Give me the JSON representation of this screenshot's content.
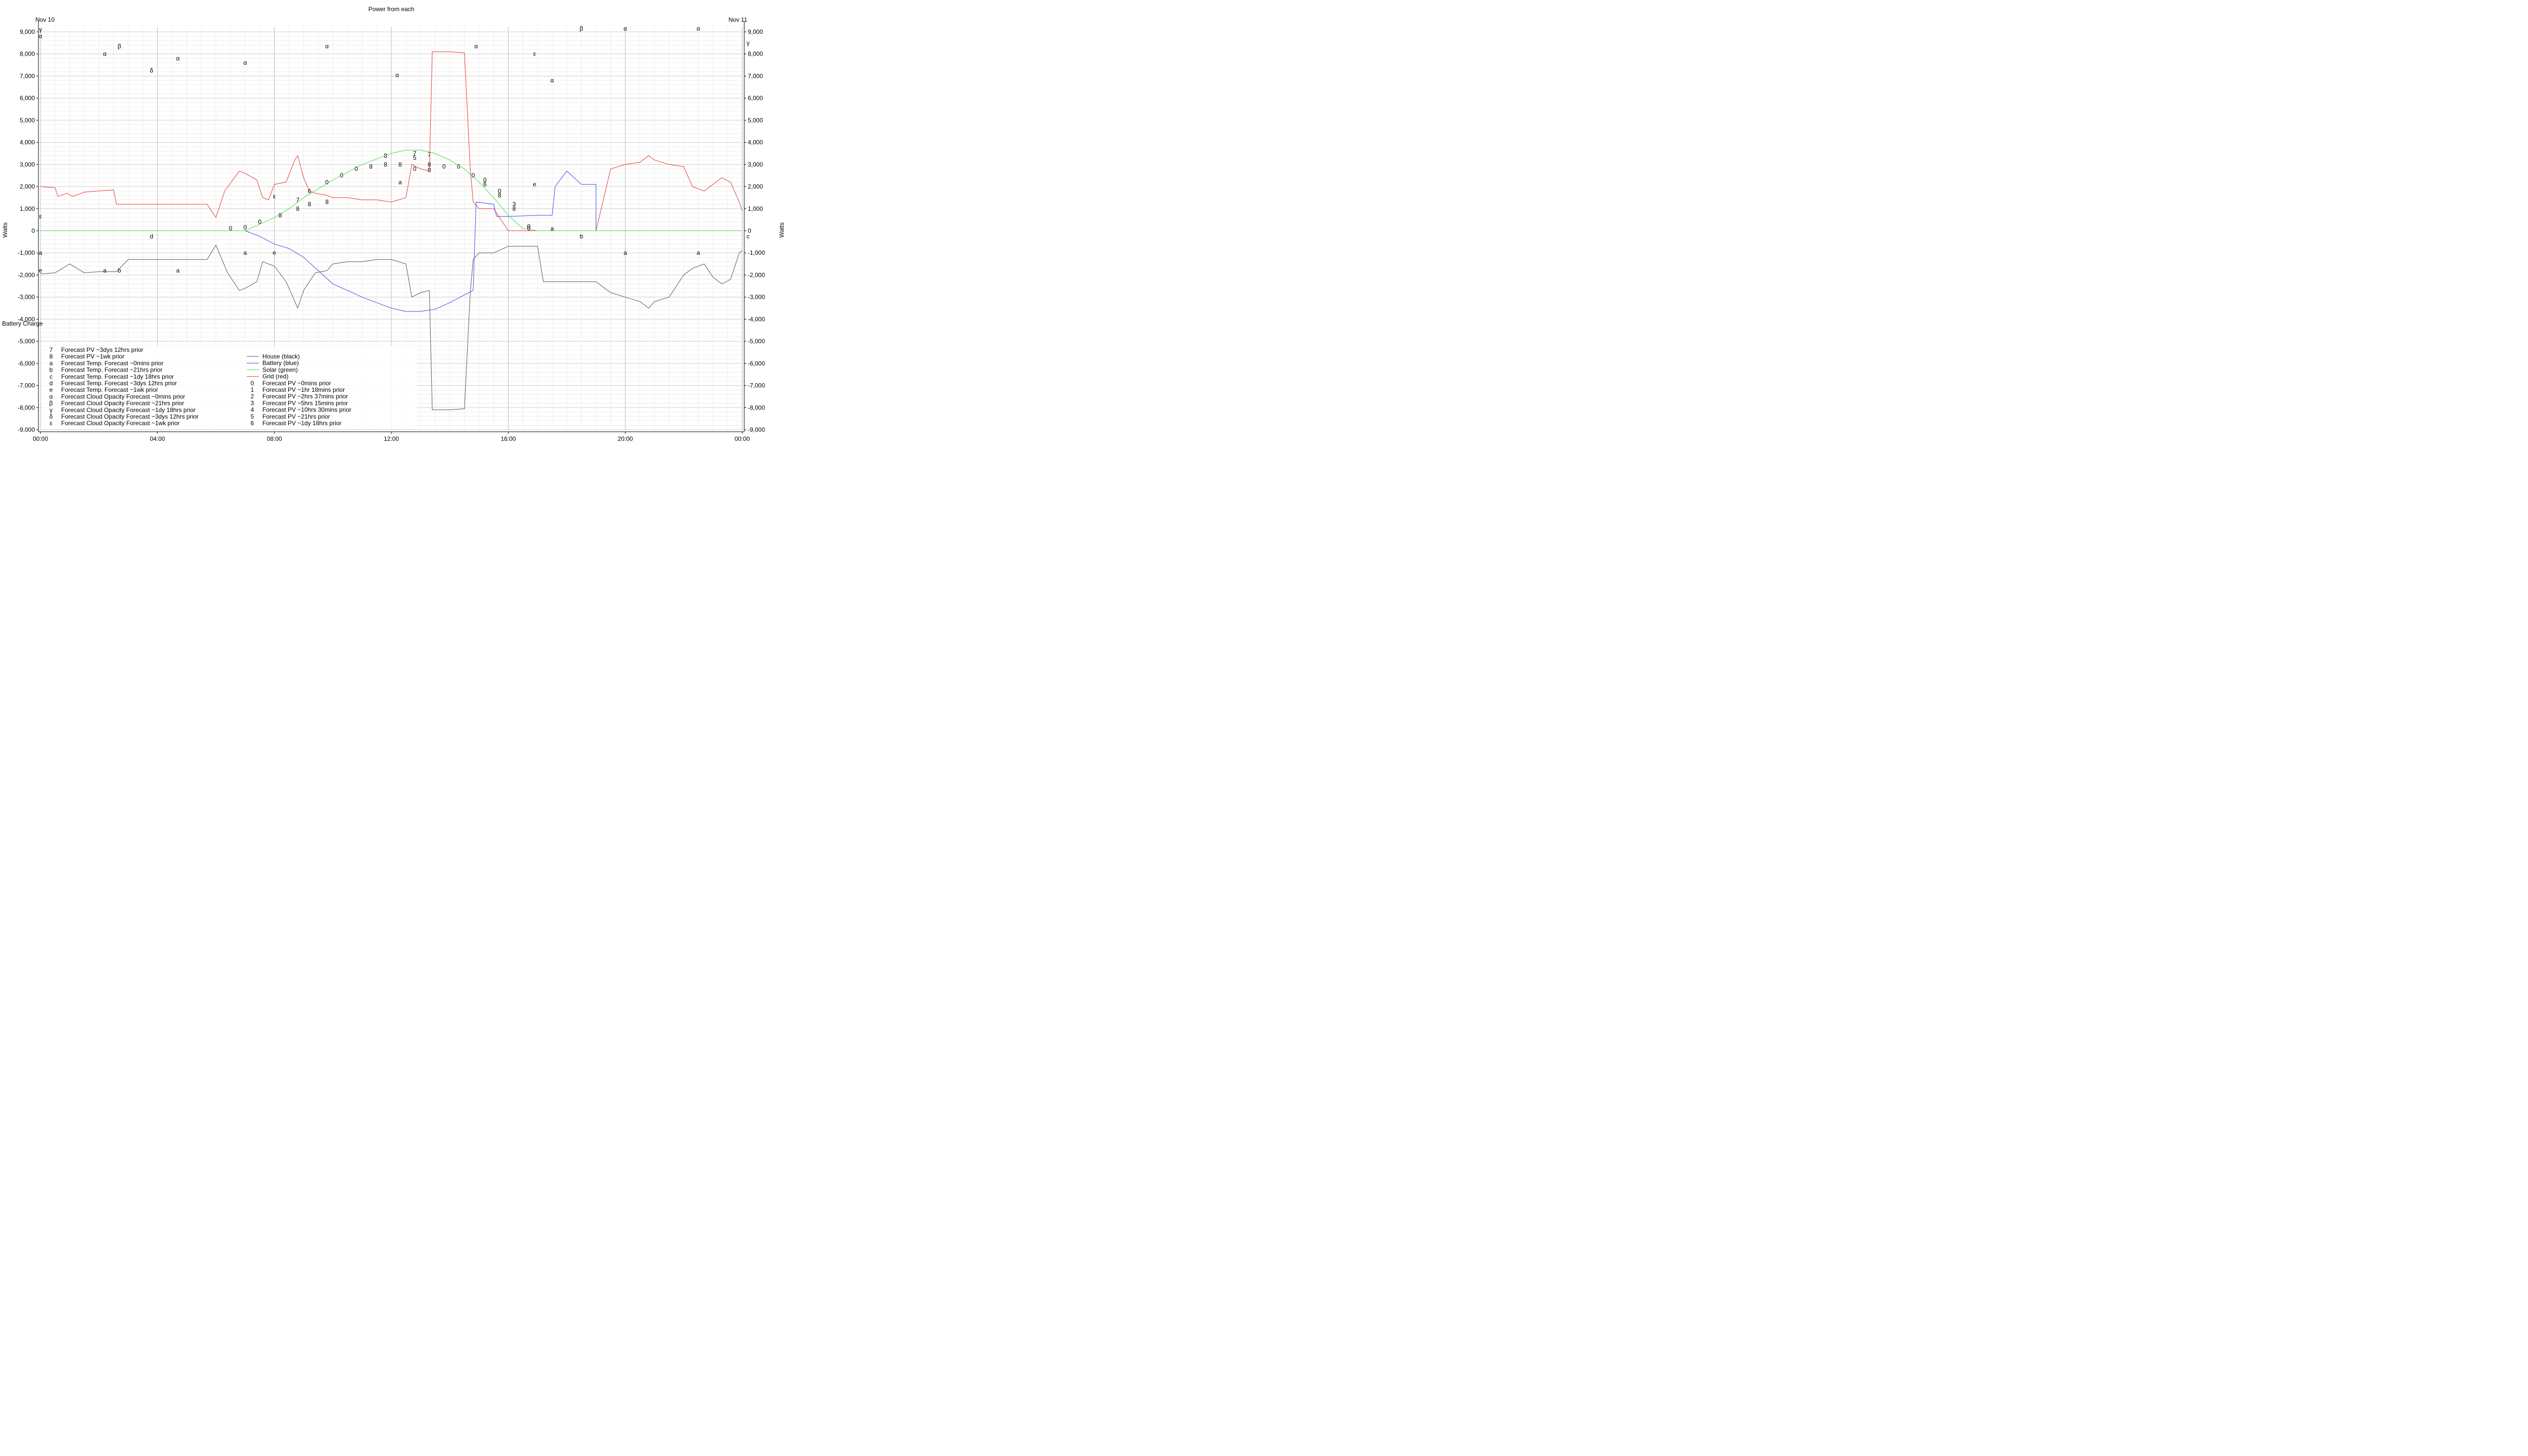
{
  "chart_data": {
    "type": "line",
    "title": "Power from each",
    "date_left": "Nov 10",
    "date_right": "Nov 11",
    "ylabel": "Watts",
    "ylabel_right": "Watts",
    "battery_label": "Battery Charge",
    "ylim": [
      -9000,
      9000
    ],
    "xlim_hours": [
      0,
      24
    ],
    "grid": true,
    "y_ticks": [
      "9,000",
      "8,000",
      "7,000",
      "6,000",
      "5,000",
      "4,000",
      "3,000",
      "2,000",
      "1,000",
      "0",
      "-1,000",
      "-2,000",
      "-3,000",
      "-4,000",
      "-5,000",
      "-6,000",
      "-7,000",
      "-8,000",
      "-9,000"
    ],
    "x_ticks": [
      "00:00",
      "04:00",
      "08:00",
      "12:00",
      "16:00",
      "20:00",
      "00:00"
    ],
    "legend_left": [
      {
        "sym": "7",
        "label": "Forecast PV ~3dys 12hrs prior"
      },
      {
        "sym": "8",
        "label": "Forecast PV ~1wk prior"
      },
      {
        "sym": "a",
        "label": "Forecast Temp. Forecast ~0mins prior"
      },
      {
        "sym": "b",
        "label": "Forecast Temp. Forecast ~21hrs prior"
      },
      {
        "sym": "c",
        "label": "Forecast Temp. Forecast ~1dy 18hrs prior"
      },
      {
        "sym": "d",
        "label": "Forecast Temp. Forecast ~3dys 12hrs prior"
      },
      {
        "sym": "e",
        "label": "Forecast Temp. Forecast ~1wk prior"
      },
      {
        "sym": "α",
        "label": "Forecast Cloud Opacity Forecast ~0mins prior"
      },
      {
        "sym": "β",
        "label": "Forecast Cloud Opacity Forecast ~21hrs prior"
      },
      {
        "sym": "γ",
        "label": "Forecast Cloud Opacity Forecast ~1dy 18hrs prior"
      },
      {
        "sym": "δ",
        "label": "Forecast Cloud Opacity Forecast ~3dys 12hrs prior"
      },
      {
        "sym": "ε",
        "label": "Forecast Cloud Opacity Forecast ~1wk prior"
      }
    ],
    "legend_right": [
      {
        "sym": "",
        "label": "House (black)",
        "color": "#555555"
      },
      {
        "sym": "",
        "label": "Battery (blue)",
        "color": "#4444ee"
      },
      {
        "sym": "",
        "label": "Solar (green)",
        "color": "#44dd44"
      },
      {
        "sym": "",
        "label": "Grid (red)",
        "color": "#ee3333"
      },
      {
        "sym": "0",
        "label": "Forecast PV ~0mins prior"
      },
      {
        "sym": "1",
        "label": "Forecast PV ~1hr 18mins prior"
      },
      {
        "sym": "2",
        "label": "Forecast PV ~2hrs 37mins prior"
      },
      {
        "sym": "3",
        "label": "Forecast PV ~5hrs 15mins prior"
      },
      {
        "sym": "4",
        "label": "Forecast PV ~10hrs 30mins prior"
      },
      {
        "sym": "5",
        "label": "Forecast PV ~21hrs prior"
      },
      {
        "sym": "6",
        "label": "Forecast PV ~1dy 18hrs prior"
      }
    ],
    "series": [
      {
        "name": "Grid (red)",
        "color": "#ee3333",
        "x": [
          0,
          0.5,
          0.6,
          0.9,
          1.1,
          1.5,
          2.0,
          2.5,
          2.6,
          3.0,
          4.0,
          5.0,
          5.7,
          6.0,
          6.3,
          6.8,
          7.0,
          7.4,
          7.6,
          7.8,
          8.0,
          8.4,
          8.7,
          8.8,
          9.0,
          9.2,
          9.4,
          9.8,
          10.0,
          10.5,
          11.0,
          11.5,
          12.0,
          12.5,
          12.7,
          13.0,
          13.3,
          13.4,
          14.0,
          14.5,
          14.7,
          14.8,
          15.0,
          15.5,
          16.0,
          16.5,
          16.9,
          17.0,
          19.0,
          19.5,
          20.0,
          20.5,
          20.8,
          21.0,
          21.5,
          22.0,
          22.3,
          22.7,
          23.0,
          23.3,
          23.6,
          23.9,
          24.0
        ],
        "y": [
          2000,
          1950,
          1550,
          1700,
          1550,
          1750,
          1800,
          1850,
          1200,
          1200,
          1200,
          1200,
          1200,
          600,
          1800,
          2700,
          2600,
          2300,
          1500,
          1400,
          2100,
          2200,
          3200,
          3400,
          2400,
          1800,
          1700,
          1600,
          1500,
          1500,
          1400,
          1400,
          1300,
          1500,
          3000,
          2800,
          2700,
          8100,
          8100,
          8050,
          2800,
          1300,
          1000,
          1000,
          0,
          0,
          0,
          0,
          0,
          2800,
          3000,
          3100,
          3400,
          3200,
          3000,
          2900,
          2000,
          1800,
          2100,
          2400,
          2200,
          1300,
          900
        ]
      },
      {
        "name": "House (black)",
        "color": "#555555",
        "x": [
          0,
          0.5,
          1.0,
          1.5,
          2.0,
          2.6,
          3.0,
          4.0,
          5.0,
          5.7,
          6.0,
          6.4,
          6.8,
          7.0,
          7.4,
          7.6,
          8.0,
          8.4,
          8.7,
          8.8,
          9.0,
          9.4,
          9.8,
          10.0,
          10.5,
          11.0,
          11.5,
          12.0,
          12.5,
          12.7,
          13.0,
          13.3,
          13.4,
          14.0,
          14.5,
          14.7,
          14.8,
          15.0,
          15.5,
          16.0,
          16.5,
          17.0,
          17.2,
          18.0,
          19.0,
          19.5,
          20.0,
          20.5,
          20.8,
          21.0,
          21.5,
          22.0,
          22.3,
          22.7,
          23.0,
          23.3,
          23.6,
          23.9,
          24.0
        ],
        "y": [
          -1950,
          -1900,
          -1500,
          -1900,
          -1850,
          -1850,
          -1300,
          -1300,
          -1300,
          -1300,
          -650,
          -1900,
          -2700,
          -2600,
          -2300,
          -1400,
          -1600,
          -2300,
          -3200,
          -3500,
          -2700,
          -1900,
          -1800,
          -1500,
          -1400,
          -1400,
          -1300,
          -1300,
          -1500,
          -3000,
          -2800,
          -2700,
          -8100,
          -8100,
          -8050,
          -2800,
          -1300,
          -1000,
          -1000,
          -700,
          -700,
          -700,
          -2300,
          -2300,
          -2300,
          -2800,
          -3000,
          -3200,
          -3500,
          -3200,
          -3000,
          -2000,
          -1700,
          -1500,
          -2100,
          -2400,
          -2200,
          -1000,
          -900
        ]
      },
      {
        "name": "Battery (blue)",
        "color": "#4444ee",
        "x": [
          0,
          7.0,
          7.5,
          8.0,
          8.5,
          9.0,
          9.5,
          10.0,
          11.0,
          12.0,
          12.5,
          13.0,
          13.5,
          14.0,
          14.5,
          14.8,
          14.9,
          15.5,
          15.6,
          16.0,
          17.0,
          17.5,
          17.6,
          18.0,
          18.5,
          19.0,
          19.0,
          24.0
        ],
        "y": [
          0,
          0,
          -250,
          -600,
          -800,
          -1200,
          -1800,
          -2400,
          -3000,
          -3500,
          -3650,
          -3650,
          -3550,
          -3250,
          -2900,
          -2700,
          1300,
          1200,
          650,
          650,
          700,
          700,
          2000,
          2700,
          2100,
          2100,
          0,
          0
        ]
      },
      {
        "name": "Solar (green)",
        "color": "#44dd44",
        "x": [
          0,
          7.0,
          7.5,
          8.0,
          8.5,
          9.0,
          9.5,
          10.0,
          11.0,
          12.0,
          12.5,
          13.0,
          13.5,
          14.0,
          14.5,
          15.0,
          15.5,
          16.0,
          16.5,
          17.0,
          24.0
        ],
        "y": [
          0,
          0,
          300,
          600,
          1000,
          1500,
          1900,
          2300,
          3000,
          3500,
          3650,
          3650,
          3500,
          3200,
          2800,
          2200,
          1500,
          700,
          100,
          0,
          0
        ]
      }
    ],
    "annotations": [
      {
        "t": "γ",
        "x": 0.0,
        "y": 9100
      },
      {
        "t": "α",
        "x": 0.0,
        "y": 8800
      },
      {
        "t": "α",
        "x": 2.2,
        "y": 8000
      },
      {
        "t": "β",
        "x": 2.7,
        "y": 8350
      },
      {
        "t": "δ",
        "x": 3.8,
        "y": 7250
      },
      {
        "t": "α",
        "x": 4.7,
        "y": 7800
      },
      {
        "t": "α",
        "x": 7.0,
        "y": 7600
      },
      {
        "t": "α",
        "x": 9.8,
        "y": 8350
      },
      {
        "t": "α",
        "x": 12.2,
        "y": 7050
      },
      {
        "t": "α",
        "x": 14.9,
        "y": 8350
      },
      {
        "t": "ε",
        "x": 16.9,
        "y": 8000
      },
      {
        "t": "α",
        "x": 17.5,
        "y": 6800
      },
      {
        "t": "β",
        "x": 18.5,
        "y": 9150
      },
      {
        "t": "α",
        "x": 20.0,
        "y": 9150
      },
      {
        "t": "α",
        "x": 22.5,
        "y": 9150
      },
      {
        "t": "γ",
        "x": 24.2,
        "y": 8500
      },
      {
        "t": "ε",
        "x": 0.0,
        "y": 650
      },
      {
        "t": "a",
        "x": 0.0,
        "y": -1000
      },
      {
        "t": "e",
        "x": 0.0,
        "y": -1800
      },
      {
        "t": "a",
        "x": 2.2,
        "y": -1800
      },
      {
        "t": "b",
        "x": 2.7,
        "y": -1800
      },
      {
        "t": "a",
        "x": 4.7,
        "y": -1800
      },
      {
        "t": "d",
        "x": 3.8,
        "y": -250
      },
      {
        "t": "a",
        "x": 7.0,
        "y": -1000
      },
      {
        "t": "e",
        "x": 8.0,
        "y": -1000
      },
      {
        "t": "ε",
        "x": 8.0,
        "y": 1550
      },
      {
        "t": "e",
        "x": 16.9,
        "y": 2100
      },
      {
        "t": "a",
        "x": 17.5,
        "y": 100
      },
      {
        "t": "b",
        "x": 18.5,
        "y": -250
      },
      {
        "t": "a",
        "x": 20.0,
        "y": -1000
      },
      {
        "t": "a",
        "x": 22.5,
        "y": -1000
      },
      {
        "t": "c",
        "x": 24.2,
        "y": -250
      },
      {
        "t": "0",
        "x": 6.5,
        "y": 100
      },
      {
        "t": "0",
        "x": 7.0,
        "y": 150
      },
      {
        "t": "0",
        "x": 7.5,
        "y": 400
      },
      {
        "t": "8",
        "x": 8.2,
        "y": 700
      },
      {
        "t": "8",
        "x": 8.8,
        "y": 1000
      },
      {
        "t": "7",
        "x": 8.8,
        "y": 1400
      },
      {
        "t": "8",
        "x": 9.2,
        "y": 1200
      },
      {
        "t": "6",
        "x": 9.2,
        "y": 1800
      },
      {
        "t": "8",
        "x": 9.8,
        "y": 1300
      },
      {
        "t": "0",
        "x": 9.8,
        "y": 2200
      },
      {
        "t": "0",
        "x": 10.3,
        "y": 2500
      },
      {
        "t": "0",
        "x": 10.8,
        "y": 2800
      },
      {
        "t": "8",
        "x": 11.3,
        "y": 2900
      },
      {
        "t": "8",
        "x": 11.8,
        "y": 3000
      },
      {
        "t": "8",
        "x": 11.8,
        "y": 3400
      },
      {
        "t": "8",
        "x": 12.3,
        "y": 3000
      },
      {
        "t": "a",
        "x": 12.3,
        "y": 2200
      },
      {
        "t": "7",
        "x": 12.8,
        "y": 3500
      },
      {
        "t": "5",
        "x": 12.8,
        "y": 3300
      },
      {
        "t": "0",
        "x": 12.8,
        "y": 2800
      },
      {
        "t": "7",
        "x": 13.3,
        "y": 3450
      },
      {
        "t": "8",
        "x": 13.3,
        "y": 3000
      },
      {
        "t": "0",
        "x": 13.3,
        "y": 2750
      },
      {
        "t": "0",
        "x": 13.8,
        "y": 2900
      },
      {
        "t": "0",
        "x": 14.3,
        "y": 2900
      },
      {
        "t": "0",
        "x": 14.8,
        "y": 2500
      },
      {
        "t": "0",
        "x": 15.2,
        "y": 2300
      },
      {
        "t": "6",
        "x": 15.2,
        "y": 2100
      },
      {
        "t": "0",
        "x": 15.7,
        "y": 1800
      },
      {
        "t": "8",
        "x": 15.7,
        "y": 1600
      },
      {
        "t": "3",
        "x": 16.2,
        "y": 1200
      },
      {
        "t": "8",
        "x": 16.2,
        "y": 1000
      },
      {
        "t": "0",
        "x": 16.7,
        "y": 200
      },
      {
        "t": "0",
        "x": 16.7,
        "y": 100
      }
    ]
  }
}
